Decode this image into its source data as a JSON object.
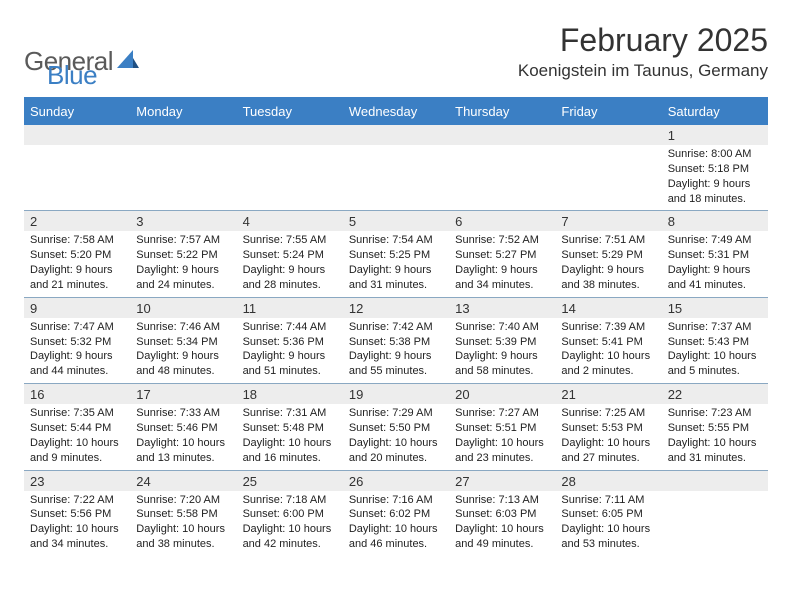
{
  "brand": {
    "part1": "General",
    "part2": "Blue"
  },
  "title": "February 2025",
  "location": "Koenigstein im Taunus, Germany",
  "colors": {
    "header_bg": "#3b7fc4",
    "band_bg": "#ededed",
    "row_border": "#8aa8c2",
    "text": "#222222",
    "brand_gray": "#5a5a5a",
    "brand_blue": "#3b7fc4"
  },
  "day_headers": [
    "Sunday",
    "Monday",
    "Tuesday",
    "Wednesday",
    "Thursday",
    "Friday",
    "Saturday"
  ],
  "weeks": [
    [
      {
        "day": "",
        "sunrise": "",
        "sunset": "",
        "daylight1": "",
        "daylight2": ""
      },
      {
        "day": "",
        "sunrise": "",
        "sunset": "",
        "daylight1": "",
        "daylight2": ""
      },
      {
        "day": "",
        "sunrise": "",
        "sunset": "",
        "daylight1": "",
        "daylight2": ""
      },
      {
        "day": "",
        "sunrise": "",
        "sunset": "",
        "daylight1": "",
        "daylight2": ""
      },
      {
        "day": "",
        "sunrise": "",
        "sunset": "",
        "daylight1": "",
        "daylight2": ""
      },
      {
        "day": "",
        "sunrise": "",
        "sunset": "",
        "daylight1": "",
        "daylight2": ""
      },
      {
        "day": "1",
        "sunrise": "Sunrise: 8:00 AM",
        "sunset": "Sunset: 5:18 PM",
        "daylight1": "Daylight: 9 hours",
        "daylight2": "and 18 minutes."
      }
    ],
    [
      {
        "day": "2",
        "sunrise": "Sunrise: 7:58 AM",
        "sunset": "Sunset: 5:20 PM",
        "daylight1": "Daylight: 9 hours",
        "daylight2": "and 21 minutes."
      },
      {
        "day": "3",
        "sunrise": "Sunrise: 7:57 AM",
        "sunset": "Sunset: 5:22 PM",
        "daylight1": "Daylight: 9 hours",
        "daylight2": "and 24 minutes."
      },
      {
        "day": "4",
        "sunrise": "Sunrise: 7:55 AM",
        "sunset": "Sunset: 5:24 PM",
        "daylight1": "Daylight: 9 hours",
        "daylight2": "and 28 minutes."
      },
      {
        "day": "5",
        "sunrise": "Sunrise: 7:54 AM",
        "sunset": "Sunset: 5:25 PM",
        "daylight1": "Daylight: 9 hours",
        "daylight2": "and 31 minutes."
      },
      {
        "day": "6",
        "sunrise": "Sunrise: 7:52 AM",
        "sunset": "Sunset: 5:27 PM",
        "daylight1": "Daylight: 9 hours",
        "daylight2": "and 34 minutes."
      },
      {
        "day": "7",
        "sunrise": "Sunrise: 7:51 AM",
        "sunset": "Sunset: 5:29 PM",
        "daylight1": "Daylight: 9 hours",
        "daylight2": "and 38 minutes."
      },
      {
        "day": "8",
        "sunrise": "Sunrise: 7:49 AM",
        "sunset": "Sunset: 5:31 PM",
        "daylight1": "Daylight: 9 hours",
        "daylight2": "and 41 minutes."
      }
    ],
    [
      {
        "day": "9",
        "sunrise": "Sunrise: 7:47 AM",
        "sunset": "Sunset: 5:32 PM",
        "daylight1": "Daylight: 9 hours",
        "daylight2": "and 44 minutes."
      },
      {
        "day": "10",
        "sunrise": "Sunrise: 7:46 AM",
        "sunset": "Sunset: 5:34 PM",
        "daylight1": "Daylight: 9 hours",
        "daylight2": "and 48 minutes."
      },
      {
        "day": "11",
        "sunrise": "Sunrise: 7:44 AM",
        "sunset": "Sunset: 5:36 PM",
        "daylight1": "Daylight: 9 hours",
        "daylight2": "and 51 minutes."
      },
      {
        "day": "12",
        "sunrise": "Sunrise: 7:42 AM",
        "sunset": "Sunset: 5:38 PM",
        "daylight1": "Daylight: 9 hours",
        "daylight2": "and 55 minutes."
      },
      {
        "day": "13",
        "sunrise": "Sunrise: 7:40 AM",
        "sunset": "Sunset: 5:39 PM",
        "daylight1": "Daylight: 9 hours",
        "daylight2": "and 58 minutes."
      },
      {
        "day": "14",
        "sunrise": "Sunrise: 7:39 AM",
        "sunset": "Sunset: 5:41 PM",
        "daylight1": "Daylight: 10 hours",
        "daylight2": "and 2 minutes."
      },
      {
        "day": "15",
        "sunrise": "Sunrise: 7:37 AM",
        "sunset": "Sunset: 5:43 PM",
        "daylight1": "Daylight: 10 hours",
        "daylight2": "and 5 minutes."
      }
    ],
    [
      {
        "day": "16",
        "sunrise": "Sunrise: 7:35 AM",
        "sunset": "Sunset: 5:44 PM",
        "daylight1": "Daylight: 10 hours",
        "daylight2": "and 9 minutes."
      },
      {
        "day": "17",
        "sunrise": "Sunrise: 7:33 AM",
        "sunset": "Sunset: 5:46 PM",
        "daylight1": "Daylight: 10 hours",
        "daylight2": "and 13 minutes."
      },
      {
        "day": "18",
        "sunrise": "Sunrise: 7:31 AM",
        "sunset": "Sunset: 5:48 PM",
        "daylight1": "Daylight: 10 hours",
        "daylight2": "and 16 minutes."
      },
      {
        "day": "19",
        "sunrise": "Sunrise: 7:29 AM",
        "sunset": "Sunset: 5:50 PM",
        "daylight1": "Daylight: 10 hours",
        "daylight2": "and 20 minutes."
      },
      {
        "day": "20",
        "sunrise": "Sunrise: 7:27 AM",
        "sunset": "Sunset: 5:51 PM",
        "daylight1": "Daylight: 10 hours",
        "daylight2": "and 23 minutes."
      },
      {
        "day": "21",
        "sunrise": "Sunrise: 7:25 AM",
        "sunset": "Sunset: 5:53 PM",
        "daylight1": "Daylight: 10 hours",
        "daylight2": "and 27 minutes."
      },
      {
        "day": "22",
        "sunrise": "Sunrise: 7:23 AM",
        "sunset": "Sunset: 5:55 PM",
        "daylight1": "Daylight: 10 hours",
        "daylight2": "and 31 minutes."
      }
    ],
    [
      {
        "day": "23",
        "sunrise": "Sunrise: 7:22 AM",
        "sunset": "Sunset: 5:56 PM",
        "daylight1": "Daylight: 10 hours",
        "daylight2": "and 34 minutes."
      },
      {
        "day": "24",
        "sunrise": "Sunrise: 7:20 AM",
        "sunset": "Sunset: 5:58 PM",
        "daylight1": "Daylight: 10 hours",
        "daylight2": "and 38 minutes."
      },
      {
        "day": "25",
        "sunrise": "Sunrise: 7:18 AM",
        "sunset": "Sunset: 6:00 PM",
        "daylight1": "Daylight: 10 hours",
        "daylight2": "and 42 minutes."
      },
      {
        "day": "26",
        "sunrise": "Sunrise: 7:16 AM",
        "sunset": "Sunset: 6:02 PM",
        "daylight1": "Daylight: 10 hours",
        "daylight2": "and 46 minutes."
      },
      {
        "day": "27",
        "sunrise": "Sunrise: 7:13 AM",
        "sunset": "Sunset: 6:03 PM",
        "daylight1": "Daylight: 10 hours",
        "daylight2": "and 49 minutes."
      },
      {
        "day": "28",
        "sunrise": "Sunrise: 7:11 AM",
        "sunset": "Sunset: 6:05 PM",
        "daylight1": "Daylight: 10 hours",
        "daylight2": "and 53 minutes."
      },
      {
        "day": "",
        "sunrise": "",
        "sunset": "",
        "daylight1": "",
        "daylight2": ""
      }
    ]
  ]
}
